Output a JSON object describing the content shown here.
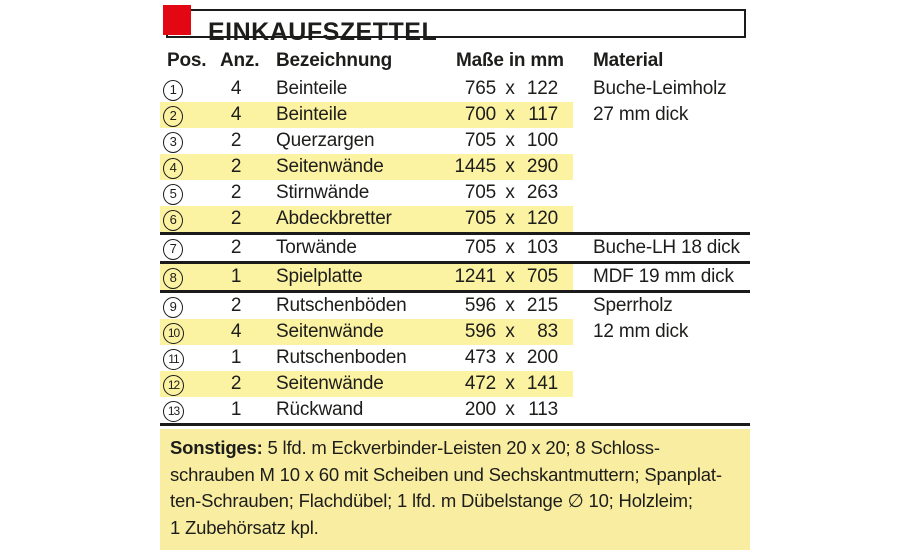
{
  "title": "EINKAUFSZETTEL",
  "colors": {
    "accent_red": "#e30613",
    "row_highlight": "#fbf2a2",
    "footer_bg": "#f8eda0",
    "line": "#1b1b1b",
    "text": "#1d1d1b"
  },
  "table": {
    "headers": [
      "Pos.",
      "Anz.",
      "Bezeichnung",
      "Maße in mm",
      "Material"
    ],
    "dimension_separator": "x",
    "rows": [
      {
        "pos": "1",
        "qty": "4",
        "name": "Beinteile",
        "width_mm": "765",
        "height_mm": "122",
        "material": "Buche-Leimholz",
        "highlight": false,
        "divider_after": false
      },
      {
        "pos": "2",
        "qty": "4",
        "name": "Beinteile",
        "width_mm": "700",
        "height_mm": "117",
        "material": "27 mm dick",
        "highlight": true,
        "divider_after": false
      },
      {
        "pos": "3",
        "qty": "2",
        "name": "Querzargen",
        "width_mm": "705",
        "height_mm": "100",
        "material": "",
        "highlight": false,
        "divider_after": false
      },
      {
        "pos": "4",
        "qty": "2",
        "name": "Seitenwände",
        "width_mm": "1445",
        "height_mm": "290",
        "material": "",
        "highlight": true,
        "divider_after": false
      },
      {
        "pos": "5",
        "qty": "2",
        "name": "Stirnwände",
        "width_mm": "705",
        "height_mm": "263",
        "material": "",
        "highlight": false,
        "divider_after": false
      },
      {
        "pos": "6",
        "qty": "2",
        "name": "Abdeckbretter",
        "width_mm": "705",
        "height_mm": "120",
        "material": "",
        "highlight": true,
        "divider_after": true
      },
      {
        "pos": "7",
        "qty": "2",
        "name": "Torwände",
        "width_mm": "705",
        "height_mm": "103",
        "material": "Buche-LH 18 dick",
        "highlight": false,
        "divider_after": true
      },
      {
        "pos": "8",
        "qty": "1",
        "name": "Spielplatte",
        "width_mm": "1241",
        "height_mm": "705",
        "material": "MDF 19 mm dick",
        "highlight": true,
        "divider_after": true
      },
      {
        "pos": "9",
        "qty": "2",
        "name": "Rutschenböden",
        "width_mm": "596",
        "height_mm": "215",
        "material": "Sperrholz",
        "highlight": false,
        "divider_after": false
      },
      {
        "pos": "10",
        "qty": "4",
        "name": "Seitenwände",
        "width_mm": "596",
        "height_mm": "83",
        "material": "12 mm dick",
        "highlight": true,
        "divider_after": false
      },
      {
        "pos": "11",
        "qty": "1",
        "name": "Rutschenboden",
        "width_mm": "473",
        "height_mm": "200",
        "material": "",
        "highlight": false,
        "divider_after": false
      },
      {
        "pos": "12",
        "qty": "2",
        "name": "Seitenwände",
        "width_mm": "472",
        "height_mm": "141",
        "material": "",
        "highlight": true,
        "divider_after": false
      },
      {
        "pos": "13",
        "qty": "1",
        "name": "Rückwand",
        "width_mm": "200",
        "height_mm": "113",
        "material": "",
        "highlight": false,
        "divider_after": true
      }
    ]
  },
  "footer": {
    "label": "Sonstiges:",
    "line1_rest": "5 lfd. m Eckverbinder-Leisten 20 x 20; 8 Schloss-",
    "lines": [
      "schrauben M 10 x 60 mit Scheiben und Sechskantmuttern; Spanplat-",
      "ten-Schrauben; Flachdübel; 1 lfd. m Dübelstange ∅ 10; Holzleim;",
      "1 Zubehörsatz kpl."
    ]
  }
}
